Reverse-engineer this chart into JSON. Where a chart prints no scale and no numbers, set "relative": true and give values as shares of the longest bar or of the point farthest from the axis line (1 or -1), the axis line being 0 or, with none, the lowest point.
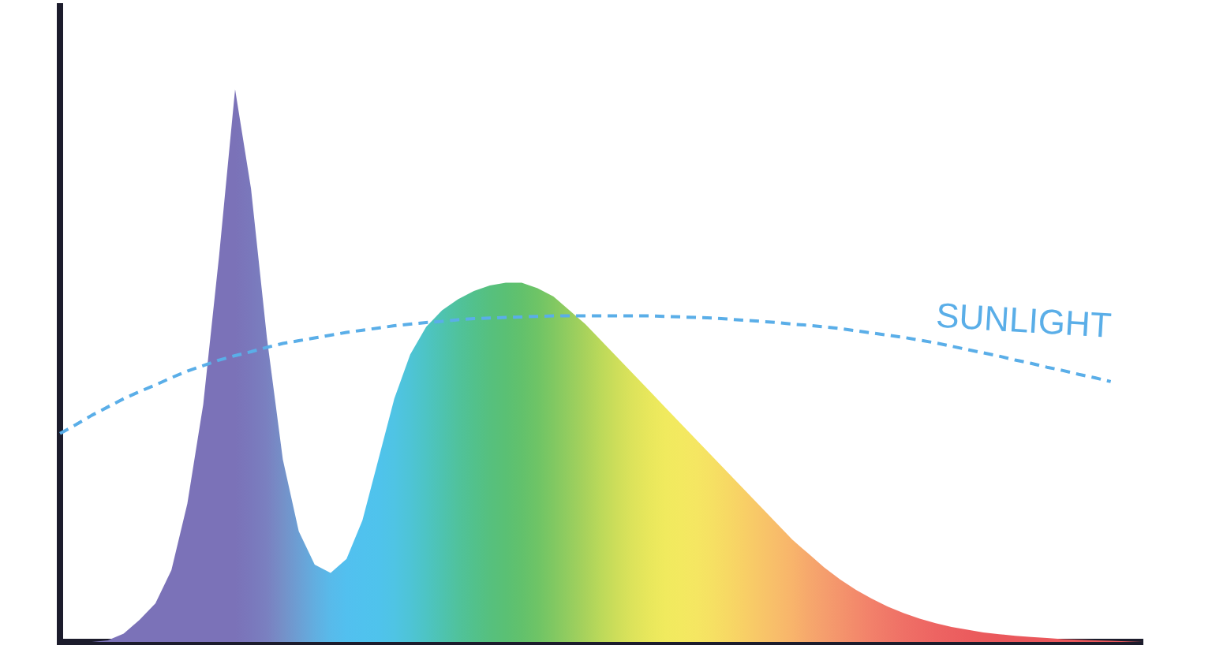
{
  "chart_data": {
    "type": "area",
    "relative": true,
    "legend": false,
    "grid": false,
    "categories": [
      null,
      null,
      null,
      null,
      null,
      null,
      null,
      null,
      null,
      null,
      null,
      null,
      null,
      null,
      null,
      null,
      null,
      null,
      null,
      null,
      null,
      null,
      null,
      null,
      null,
      null,
      null,
      null,
      null,
      null,
      null,
      null,
      null,
      null,
      null,
      null,
      null,
      null,
      null,
      null,
      null,
      null,
      null,
      null,
      null,
      null,
      null,
      null,
      null,
      null,
      null,
      null,
      null,
      null,
      null,
      null,
      null,
      null,
      null,
      null,
      null,
      null,
      null,
      null,
      null,
      null,
      null,
      null,
      null
    ],
    "series": [
      {
        "colors": [
          "#7b72b8",
          "#7b72b8",
          "#7b72b8",
          "#7b72b8",
          "#7b72b8",
          "#7b72b8",
          "#7b72b8",
          "#7b72b8",
          "#7b72b8",
          "#7b72b8",
          "#7b72b8",
          "#7b72b8",
          "#7a78bc",
          "#7a80c0",
          "#7590c8",
          "#6c9fd4",
          "#62aee0",
          "#58baea",
          "#52c0ef",
          "#50c2ee",
          "#4fc3ec",
          "#4fc4e4",
          "#4ec4d6",
          "#4dc4c4",
          "#4ec3b0",
          "#50c29c",
          "#52c18c",
          "#56c07e",
          "#5ac074",
          "#62c16c",
          "#6ec466",
          "#80c862",
          "#94cd5f",
          "#a8d25c",
          "#bcd95a",
          "#cede5a",
          "#dde35b",
          "#e8e75c",
          "#f0ea5e",
          "#f3e960",
          "#f5e662",
          "#f6e063",
          "#f7d864",
          "#f8cf66",
          "#f8c668",
          "#f8bd6a",
          "#f8b46b",
          "#f6a86c",
          "#f59e6d",
          "#f4946c",
          "#f38a6b",
          "#f2806a",
          "#f07868",
          "#ef7066",
          "#ee6a64",
          "#ed6462",
          "#ec6060",
          "#eb5c5e",
          "#ea5a5c",
          "#ea585c",
          "#ea585c",
          "#ea585c",
          "#ea585c",
          "#ea585c",
          "#ea585c",
          "#ea585c",
          "#ea585c",
          "#ea585c",
          "#ea585c"
        ],
        "values": [
          0,
          0,
          0,
          0.003,
          0.015,
          0.04,
          0.07,
          0.13,
          0.25,
          0.43,
          0.7,
          1,
          0.82,
          0.55,
          0.33,
          0.2,
          0.14,
          0.125,
          0.15,
          0.22,
          0.33,
          0.44,
          0.52,
          0.57,
          0.6,
          0.62,
          0.635,
          0.645,
          0.65,
          0.65,
          0.64,
          0.625,
          0.6,
          0.575,
          0.545,
          0.515,
          0.485,
          0.455,
          0.425,
          0.395,
          0.365,
          0.335,
          0.305,
          0.275,
          0.245,
          0.215,
          0.185,
          0.16,
          0.135,
          0.113,
          0.094,
          0.078,
          0.064,
          0.052,
          0.042,
          0.034,
          0.027,
          0.022,
          0.017,
          0.014,
          0.011,
          0.009,
          0.007,
          0.005,
          0.004,
          0.003,
          0.002,
          0.001,
          0
        ]
      },
      {
        "type": "line",
        "name": "SUNLIGHT",
        "color": "#5aaee8",
        "line_style": "dashed",
        "values": [
          0.377,
          0.393,
          0.41,
          0.425,
          0.44,
          0.453,
          0.465,
          0.478,
          0.49,
          0.5,
          0.51,
          0.518,
          0.525,
          0.533,
          0.54,
          0.545,
          0.55,
          0.555,
          0.56,
          0.564,
          0.568,
          0.572,
          0.575,
          0.578,
          0.58,
          0.583,
          0.585,
          0.586,
          0.587,
          0.588,
          0.589,
          0.59,
          0.59,
          0.59,
          0.59,
          0.59,
          0.59,
          0.59,
          0.589,
          0.588,
          0.587,
          0.586,
          0.584,
          0.582,
          0.58,
          0.578,
          0.575,
          0.573,
          0.57,
          0.567,
          0.563,
          0.559,
          0.555,
          0.551,
          0.546,
          0.541,
          0.535,
          0.529,
          0.523,
          0.517,
          0.51,
          0.504,
          0.497,
          0.491,
          0.484,
          0.478,
          0.471,
          null,
          null
        ]
      }
    ]
  }
}
